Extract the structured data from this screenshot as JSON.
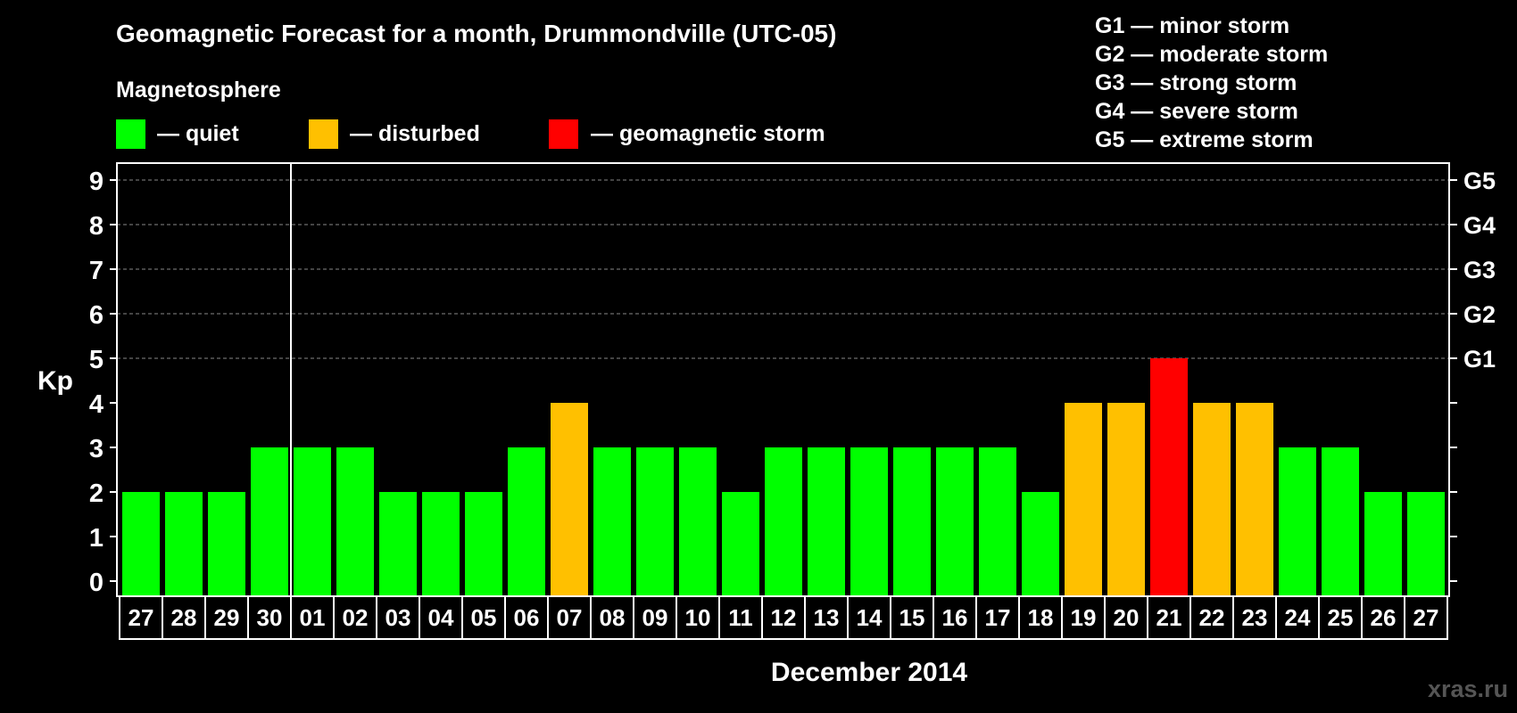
{
  "chart_data": {
    "type": "bar",
    "title": "Geomagnetic Forecast for a month, Drummondville (UTC-05)",
    "legend_title": "Magnetosphere",
    "legend": [
      {
        "key": "quiet",
        "label": "— quiet",
        "color": "#00ff00"
      },
      {
        "key": "disturbed",
        "label": "— disturbed",
        "color": "#ffc000"
      },
      {
        "key": "storm",
        "label": "— geomagnetic storm",
        "color": "#ff0000"
      }
    ],
    "g_scale": [
      "G1 — minor storm",
      "G2 — moderate storm",
      "G3 — strong storm",
      "G4 — severe storm",
      "G5 — extreme storm"
    ],
    "right_axis": [
      {
        "value": 5,
        "label": "G1"
      },
      {
        "value": 6,
        "label": "G2"
      },
      {
        "value": 7,
        "label": "G3"
      },
      {
        "value": 8,
        "label": "G4"
      },
      {
        "value": 9,
        "label": "G5"
      }
    ],
    "ylabel": "Kp",
    "xlabel": "December 2014",
    "ylim": [
      0,
      9
    ],
    "yticks": [
      0,
      1,
      2,
      3,
      4,
      5,
      6,
      7,
      8,
      9
    ],
    "grid_values": [
      5,
      6,
      7,
      8,
      9
    ],
    "month_divider_after_index": 3,
    "categories": [
      "27",
      "28",
      "29",
      "30",
      "01",
      "02",
      "03",
      "04",
      "05",
      "06",
      "07",
      "08",
      "09",
      "10",
      "11",
      "12",
      "13",
      "14",
      "15",
      "16",
      "17",
      "18",
      "19",
      "20",
      "21",
      "22",
      "23",
      "24",
      "25",
      "26",
      "27"
    ],
    "values": [
      2,
      2,
      2,
      3,
      3,
      3,
      2,
      2,
      2,
      3,
      4,
      3,
      3,
      3,
      2,
      3,
      3,
      3,
      3,
      3,
      3,
      2,
      4,
      4,
      5,
      4,
      4,
      3,
      3,
      2,
      2
    ],
    "watermark": "xras.ru"
  }
}
